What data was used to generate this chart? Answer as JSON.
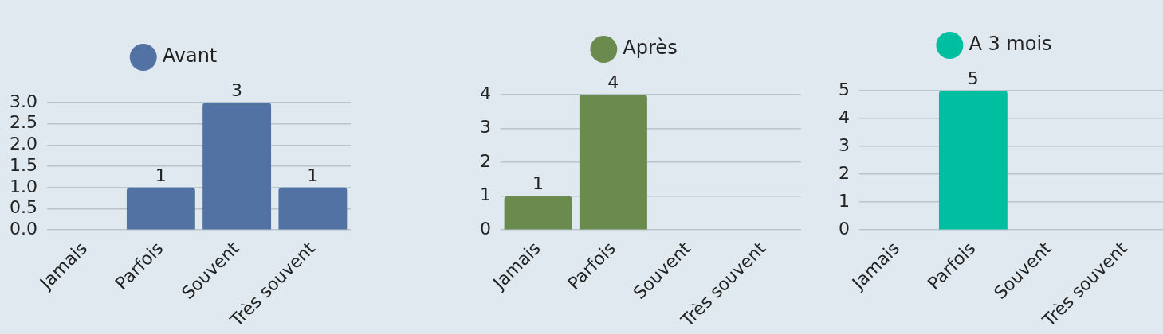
{
  "chart_data": [
    {
      "type": "bar",
      "categories": [
        "Jamais",
        "Parfois",
        "Souvent",
        "Très souvent"
      ],
      "series": [
        {
          "name": "Avant",
          "color": "#5272a3",
          "values": [
            0,
            1,
            3,
            1
          ],
          "value_labels": [
            null,
            "1",
            "3",
            "1"
          ]
        }
      ],
      "ylim": [
        0,
        3
      ],
      "yticks": [
        {
          "value": 0,
          "label": "0.0"
        },
        {
          "value": 0.5,
          "label": "0.5"
        },
        {
          "value": 1,
          "label": "1.0"
        },
        {
          "value": 1.5,
          "label": "1.5"
        },
        {
          "value": 2,
          "label": "2.0"
        },
        {
          "value": 2.5,
          "label": "2.5"
        },
        {
          "value": 3,
          "label": "3.0"
        }
      ],
      "grid": "y",
      "legend": "top"
    },
    {
      "type": "bar",
      "categories": [
        "Jamais",
        "Parfois",
        "Souvent",
        "Très souvent"
      ],
      "series": [
        {
          "name": "Après",
          "color": "#6b8a4e",
          "values": [
            1,
            4,
            0,
            0
          ],
          "value_labels": [
            "1",
            "4",
            null,
            null
          ]
        }
      ],
      "ylim": [
        0,
        4
      ],
      "yticks": [
        0,
        1,
        2,
        3,
        4
      ],
      "grid": "y",
      "legend": "top"
    },
    {
      "type": "bar",
      "categories": [
        "Jamais",
        "Parfois",
        "Souvent",
        "Très souvent"
      ],
      "series": [
        {
          "name": "A 3 mois",
          "color": "#00bfa0",
          "values": [
            0,
            5,
            0,
            0
          ],
          "value_labels": [
            null,
            "5",
            null,
            null
          ]
        }
      ],
      "ylim": [
        0,
        5
      ],
      "yticks": [
        0,
        1,
        2,
        3,
        4,
        5
      ],
      "grid": "y",
      "legend": "top"
    }
  ]
}
